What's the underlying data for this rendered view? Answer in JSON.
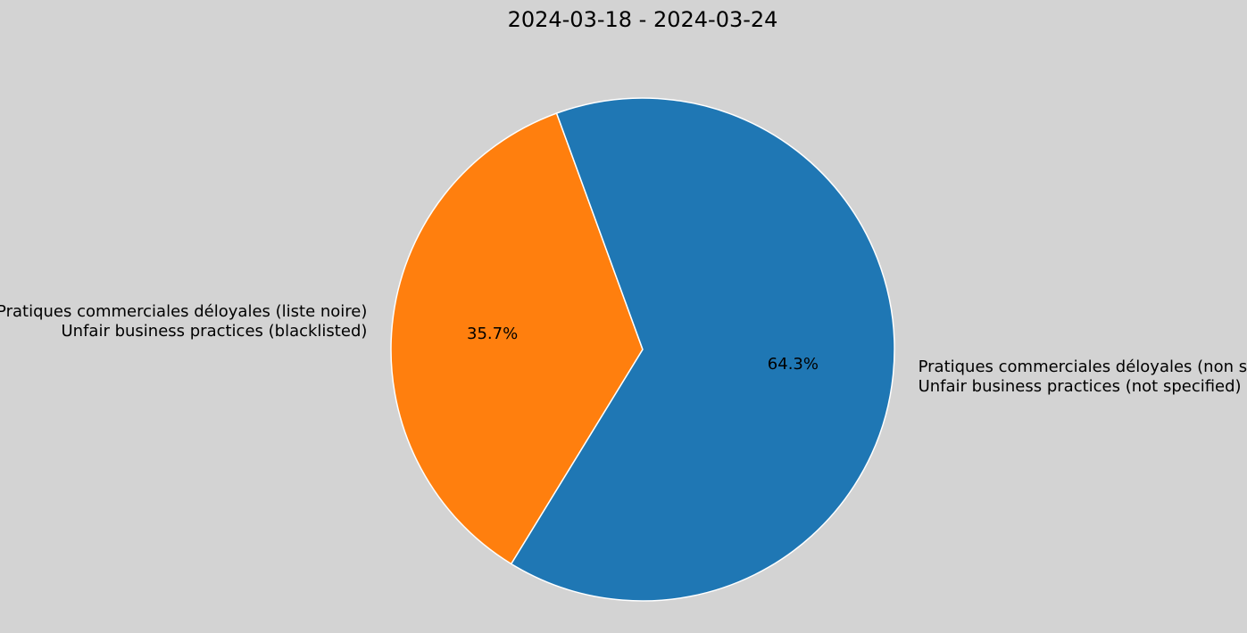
{
  "chart_data": {
    "type": "pie",
    "title": "2024-03-18 - 2024-03-24",
    "start_angle_deg": 110,
    "direction": "counterclockwise",
    "slices": [
      {
        "label_line1": "Pratiques commerciales déloyales (liste noire)",
        "label_line2": "Unfair business practices (blacklisted)",
        "percent": 35.7,
        "percent_label": "35.7%",
        "color": "#ff7f0e"
      },
      {
        "label_line1": "Pratiques commerciales déloyales (non spécifiées)",
        "label_line2": "Unfair business practices (not specified)",
        "percent": 64.3,
        "percent_label": "64.3%",
        "color": "#1f77b4"
      }
    ],
    "edge_color": "#ffffff",
    "background": "#d3d3d3"
  }
}
